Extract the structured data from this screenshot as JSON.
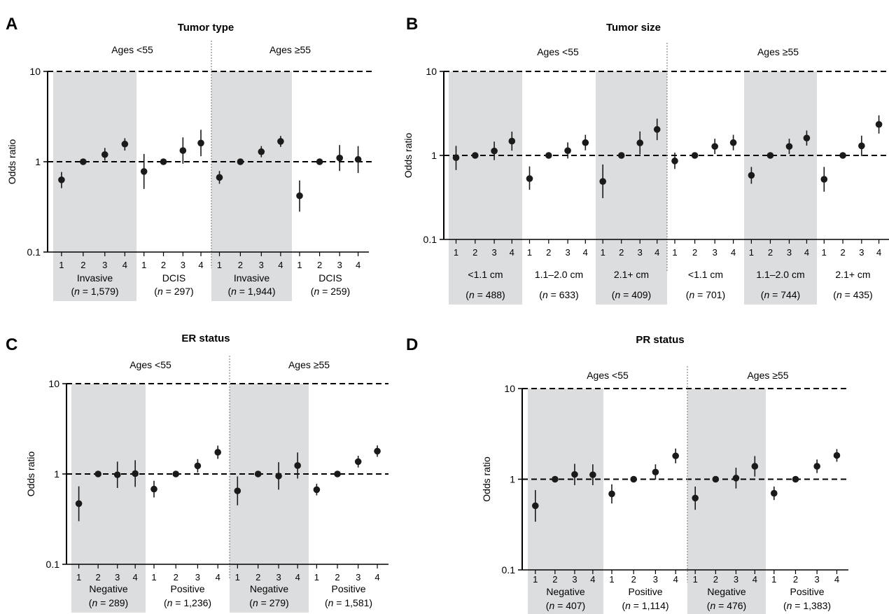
{
  "chart_data": [
    {
      "type": "scatter",
      "panel": "A",
      "title": "Tumor type",
      "ylabel": "Odds ratio",
      "yscale": "log",
      "ylim": [
        0.1,
        10
      ],
      "yticks": [
        "0.1",
        "1",
        "10"
      ],
      "reference_lines": [
        1,
        10
      ],
      "age_sections": [
        "Ages <55",
        "Ages ≥55"
      ],
      "x_tick_labels": [
        "1",
        "2",
        "3",
        "4"
      ],
      "groups": [
        {
          "label": "Invasive",
          "n_prefix": "(",
          "n_var": "n",
          "n_value": " = 1,579)",
          "shaded": true,
          "points": [
            {
              "x": 1,
              "y": 0.63,
              "lo": 0.51,
              "hi": 0.77
            },
            {
              "x": 2,
              "y": 1.0,
              "lo": 1.0,
              "hi": 1.0
            },
            {
              "x": 3,
              "y": 1.2,
              "lo": 1.03,
              "hi": 1.42
            },
            {
              "x": 4,
              "y": 1.57,
              "lo": 1.33,
              "hi": 1.82
            }
          ]
        },
        {
          "label": "DCIS",
          "n_prefix": "(",
          "n_var": "n",
          "n_value": " = 297)",
          "shaded": false,
          "points": [
            {
              "x": 1,
              "y": 0.78,
              "lo": 0.5,
              "hi": 1.22
            },
            {
              "x": 2,
              "y": 1.0,
              "lo": 1.0,
              "hi": 1.0
            },
            {
              "x": 3,
              "y": 1.33,
              "lo": 0.95,
              "hi": 1.86
            },
            {
              "x": 4,
              "y": 1.61,
              "lo": 1.15,
              "hi": 2.26
            }
          ]
        },
        {
          "label": "Invasive",
          "n_prefix": "(",
          "n_var": "n",
          "n_value": " = 1,944)",
          "shaded": true,
          "points": [
            {
              "x": 1,
              "y": 0.67,
              "lo": 0.57,
              "hi": 0.79
            },
            {
              "x": 2,
              "y": 1.0,
              "lo": 1.0,
              "hi": 1.0
            },
            {
              "x": 3,
              "y": 1.29,
              "lo": 1.12,
              "hi": 1.49
            },
            {
              "x": 4,
              "y": 1.68,
              "lo": 1.46,
              "hi": 1.93
            }
          ]
        },
        {
          "label": "DCIS",
          "n_prefix": "(",
          "n_var": "n",
          "n_value": " = 259)",
          "shaded": false,
          "points": [
            {
              "x": 1,
              "y": 0.42,
              "lo": 0.28,
              "hi": 0.62
            },
            {
              "x": 2,
              "y": 1.0,
              "lo": 1.0,
              "hi": 1.0
            },
            {
              "x": 3,
              "y": 1.1,
              "lo": 0.79,
              "hi": 1.53
            },
            {
              "x": 4,
              "y": 1.06,
              "lo": 0.75,
              "hi": 1.49
            }
          ]
        }
      ]
    },
    {
      "type": "scatter",
      "panel": "B",
      "title": "Tumor size",
      "ylabel": "Odds ratio",
      "yscale": "log",
      "ylim": [
        0.1,
        10
      ],
      "yticks": [
        "0.1",
        "1",
        "10"
      ],
      "reference_lines": [
        1,
        10
      ],
      "age_sections": [
        "Ages <55",
        "Ages ≥55"
      ],
      "x_tick_labels": [
        "1",
        "2",
        "3",
        "4"
      ],
      "groups": [
        {
          "label": "<1.1 cm",
          "n_prefix": "(",
          "n_var": "n",
          "n_value": " = 488)",
          "shaded": true,
          "points": [
            {
              "x": 1,
              "y": 0.94,
              "lo": 0.67,
              "hi": 1.3
            },
            {
              "x": 2,
              "y": 1.0,
              "lo": 1.0,
              "hi": 1.0
            },
            {
              "x": 3,
              "y": 1.13,
              "lo": 0.88,
              "hi": 1.46
            },
            {
              "x": 4,
              "y": 1.48,
              "lo": 1.14,
              "hi": 1.92
            }
          ]
        },
        {
          "label": "1.1–2.0 cm",
          "n_prefix": "(",
          "n_var": "n",
          "n_value": " = 633)",
          "shaded": false,
          "points": [
            {
              "x": 1,
              "y": 0.53,
              "lo": 0.39,
              "hi": 0.74
            },
            {
              "x": 2,
              "y": 1.0,
              "lo": 1.0,
              "hi": 1.0
            },
            {
              "x": 3,
              "y": 1.14,
              "lo": 0.92,
              "hi": 1.43
            },
            {
              "x": 4,
              "y": 1.42,
              "lo": 1.15,
              "hi": 1.76
            }
          ]
        },
        {
          "label": "2.1+ cm",
          "n_prefix": "(",
          "n_var": "n",
          "n_value": " = 409)",
          "shaded": true,
          "points": [
            {
              "x": 1,
              "y": 0.49,
              "lo": 0.31,
              "hi": 0.78
            },
            {
              "x": 2,
              "y": 1.0,
              "lo": 1.0,
              "hi": 1.0
            },
            {
              "x": 3,
              "y": 1.41,
              "lo": 1.03,
              "hi": 1.93
            },
            {
              "x": 4,
              "y": 2.04,
              "lo": 1.52,
              "hi": 2.74
            }
          ]
        },
        {
          "label": "<1.1 cm",
          "n_prefix": "(",
          "n_var": "n",
          "n_value": " = 701)",
          "shaded": false,
          "points": [
            {
              "x": 1,
              "y": 0.86,
              "lo": 0.69,
              "hi": 1.08
            },
            {
              "x": 2,
              "y": 1.0,
              "lo": 1.0,
              "hi": 1.0
            },
            {
              "x": 3,
              "y": 1.28,
              "lo": 1.04,
              "hi": 1.58
            },
            {
              "x": 4,
              "y": 1.42,
              "lo": 1.15,
              "hi": 1.76
            }
          ]
        },
        {
          "label": "1.1–2.0 cm",
          "n_prefix": "(",
          "n_var": "n",
          "n_value": " = 744)",
          "shaded": true,
          "points": [
            {
              "x": 1,
              "y": 0.58,
              "lo": 0.46,
              "hi": 0.73
            },
            {
              "x": 2,
              "y": 1.0,
              "lo": 1.0,
              "hi": 1.0
            },
            {
              "x": 3,
              "y": 1.28,
              "lo": 1.04,
              "hi": 1.58
            },
            {
              "x": 4,
              "y": 1.61,
              "lo": 1.31,
              "hi": 1.98
            }
          ]
        },
        {
          "label": "2.1+ cm",
          "n_prefix": "(",
          "n_var": "n",
          "n_value": " = 435)",
          "shaded": false,
          "points": [
            {
              "x": 1,
              "y": 0.52,
              "lo": 0.37,
              "hi": 0.73
            },
            {
              "x": 2,
              "y": 1.0,
              "lo": 1.0,
              "hi": 1.0
            },
            {
              "x": 3,
              "y": 1.3,
              "lo": 0.98,
              "hi": 1.72
            },
            {
              "x": 4,
              "y": 2.34,
              "lo": 1.82,
              "hi": 3.0
            }
          ]
        }
      ]
    },
    {
      "type": "scatter",
      "panel": "C",
      "title": "ER status",
      "ylabel": "Odds ratio",
      "yscale": "log",
      "ylim": [
        0.1,
        10
      ],
      "yticks": [
        "0.1",
        "1",
        "10"
      ],
      "reference_lines": [
        1,
        10
      ],
      "age_sections": [
        "Ages <55",
        "Ages ≥55"
      ],
      "x_tick_labels": [
        "1",
        "2",
        "3",
        "4"
      ],
      "groups": [
        {
          "label": "Negative",
          "n_prefix": "(",
          "n_var": "n",
          "n_value": " = 289)",
          "shaded": true,
          "points": [
            {
              "x": 1,
              "y": 0.47,
              "lo": 0.3,
              "hi": 0.73
            },
            {
              "x": 2,
              "y": 1.0,
              "lo": 1.0,
              "hi": 1.0
            },
            {
              "x": 3,
              "y": 0.98,
              "lo": 0.7,
              "hi": 1.37
            },
            {
              "x": 4,
              "y": 1.01,
              "lo": 0.72,
              "hi": 1.42
            }
          ]
        },
        {
          "label": "Positive",
          "n_prefix": "(",
          "n_var": "n",
          "n_value": " = 1,236)",
          "shaded": false,
          "points": [
            {
              "x": 1,
              "y": 0.68,
              "lo": 0.55,
              "hi": 0.84
            },
            {
              "x": 2,
              "y": 1.0,
              "lo": 1.0,
              "hi": 1.0
            },
            {
              "x": 3,
              "y": 1.23,
              "lo": 1.04,
              "hi": 1.46
            },
            {
              "x": 4,
              "y": 1.74,
              "lo": 1.47,
              "hi": 2.06
            }
          ]
        },
        {
          "label": "Negative",
          "n_prefix": "(",
          "n_var": "n",
          "n_value": " = 279)",
          "shaded": true,
          "points": [
            {
              "x": 1,
              "y": 0.65,
              "lo": 0.45,
              "hi": 0.94
            },
            {
              "x": 2,
              "y": 1.0,
              "lo": 1.0,
              "hi": 1.0
            },
            {
              "x": 3,
              "y": 0.95,
              "lo": 0.67,
              "hi": 1.35
            },
            {
              "x": 4,
              "y": 1.24,
              "lo": 0.89,
              "hi": 1.73
            }
          ]
        },
        {
          "label": "Positive",
          "n_prefix": "(",
          "n_var": "n",
          "n_value": " = 1,581)",
          "shaded": false,
          "points": [
            {
              "x": 1,
              "y": 0.67,
              "lo": 0.58,
              "hi": 0.78
            },
            {
              "x": 2,
              "y": 1.0,
              "lo": 1.0,
              "hi": 1.0
            },
            {
              "x": 3,
              "y": 1.37,
              "lo": 1.18,
              "hi": 1.59
            },
            {
              "x": 4,
              "y": 1.79,
              "lo": 1.55,
              "hi": 2.07
            }
          ]
        }
      ]
    },
    {
      "type": "scatter",
      "panel": "D",
      "title": "PR status",
      "ylabel": "Odds ratio",
      "yscale": "log",
      "ylim": [
        0.1,
        10
      ],
      "yticks": [
        "0.1",
        "1",
        "10"
      ],
      "reference_lines": [
        1,
        10
      ],
      "age_sections": [
        "Ages <55",
        "Ages ≥55"
      ],
      "x_tick_labels": [
        "1",
        "2",
        "3",
        "4"
      ],
      "groups": [
        {
          "label": "Negative",
          "n_prefix": "(",
          "n_var": "n",
          "n_value": " = 407)",
          "shaded": true,
          "points": [
            {
              "x": 1,
              "y": 0.51,
              "lo": 0.34,
              "hi": 0.76
            },
            {
              "x": 2,
              "y": 1.0,
              "lo": 1.0,
              "hi": 1.0
            },
            {
              "x": 3,
              "y": 1.13,
              "lo": 0.86,
              "hi": 1.48
            },
            {
              "x": 4,
              "y": 1.12,
              "lo": 0.86,
              "hi": 1.46
            }
          ]
        },
        {
          "label": "Positive",
          "n_prefix": "(",
          "n_var": "n",
          "n_value": " = 1,114)",
          "shaded": false,
          "points": [
            {
              "x": 1,
              "y": 0.69,
              "lo": 0.54,
              "hi": 0.88
            },
            {
              "x": 2,
              "y": 1.0,
              "lo": 1.0,
              "hi": 1.0
            },
            {
              "x": 3,
              "y": 1.2,
              "lo": 0.99,
              "hi": 1.46
            },
            {
              "x": 4,
              "y": 1.81,
              "lo": 1.5,
              "hi": 2.18
            }
          ]
        },
        {
          "label": "Negative",
          "n_prefix": "(",
          "n_var": "n",
          "n_value": " = 476)",
          "shaded": true,
          "points": [
            {
              "x": 1,
              "y": 0.62,
              "lo": 0.46,
              "hi": 0.83
            },
            {
              "x": 2,
              "y": 1.0,
              "lo": 1.0,
              "hi": 1.0
            },
            {
              "x": 3,
              "y": 1.03,
              "lo": 0.79,
              "hi": 1.34
            },
            {
              "x": 4,
              "y": 1.39,
              "lo": 1.07,
              "hi": 1.8
            }
          ]
        },
        {
          "label": "Positive",
          "n_prefix": "(",
          "n_var": "n",
          "n_value": " = 1,383)",
          "shaded": false,
          "points": [
            {
              "x": 1,
              "y": 0.7,
              "lo": 0.59,
              "hi": 0.83
            },
            {
              "x": 2,
              "y": 1.0,
              "lo": 1.0,
              "hi": 1.0
            },
            {
              "x": 3,
              "y": 1.39,
              "lo": 1.17,
              "hi": 1.65
            },
            {
              "x": 4,
              "y": 1.83,
              "lo": 1.56,
              "hi": 2.15
            }
          ]
        }
      ]
    }
  ],
  "colors": {
    "shade": "#dcdddf",
    "marker": "#1a1a1a",
    "axis": "#000000",
    "divider": "#888888"
  }
}
